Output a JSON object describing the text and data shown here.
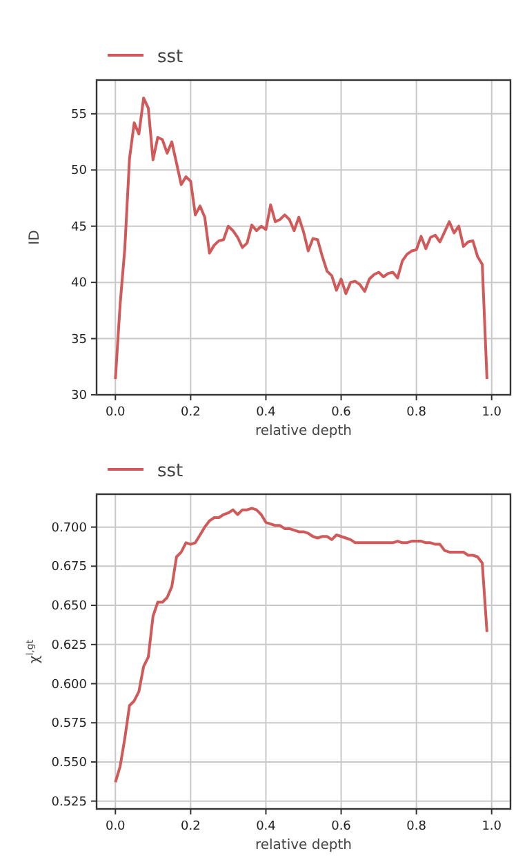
{
  "chart_data": [
    {
      "type": "line",
      "xlabel": "relative depth",
      "ylabel": "ID",
      "legend": "top left",
      "grid": true,
      "marker": "none",
      "line_style": "solid",
      "xlim": [
        -0.05,
        1.05
      ],
      "xticks": [
        {
          "value": 0,
          "label": "0.0"
        },
        {
          "value": 0.2,
          "label": "0.2"
        },
        {
          "value": 0.4,
          "label": "0.4"
        },
        {
          "value": 0.6,
          "label": "0.6"
        },
        {
          "value": 0.8,
          "label": "0.8"
        },
        {
          "value": 1,
          "label": "1.0"
        }
      ],
      "ylim": [
        30,
        58
      ],
      "yticks": [
        30,
        35,
        40,
        45,
        50,
        55
      ],
      "x": [
        0,
        0.0125,
        0.025,
        0.0375,
        0.05,
        0.0625,
        0.075,
        0.0875,
        0.1,
        0.1125,
        0.125,
        0.1375,
        0.15,
        0.1625,
        0.175,
        0.1875,
        0.2,
        0.2125,
        0.225,
        0.2375,
        0.25,
        0.2625,
        0.275,
        0.2875,
        0.3,
        0.3125,
        0.325,
        0.3375,
        0.35,
        0.3625,
        0.375,
        0.3875,
        0.4,
        0.4125,
        0.425,
        0.4375,
        0.45,
        0.4625,
        0.475,
        0.4875,
        0.5,
        0.5125,
        0.525,
        0.5375,
        0.55,
        0.5625,
        0.575,
        0.5875,
        0.6,
        0.6125,
        0.625,
        0.6375,
        0.65,
        0.6625,
        0.675,
        0.6875,
        0.7,
        0.7125,
        0.725,
        0.7375,
        0.75,
        0.7625,
        0.775,
        0.7875,
        0.8,
        0.8125,
        0.825,
        0.8375,
        0.85,
        0.8625,
        0.875,
        0.8875,
        0.9,
        0.9125,
        0.925,
        0.9375,
        0.95,
        0.9625,
        0.975,
        0.9875
      ],
      "series": [
        {
          "name": "sst",
          "color": "#d0595a",
          "values": [
            31.4,
            38,
            43,
            51,
            54.2,
            53.2,
            56.4,
            55.5,
            50.9,
            52.9,
            52.7,
            51.5,
            52.5,
            50.6,
            48.7,
            49.4,
            49,
            46,
            46.8,
            45.8,
            42.6,
            43.3,
            43.7,
            43.8,
            45,
            44.6,
            44,
            43.1,
            43.5,
            45.1,
            44.6,
            45,
            44.7,
            46.9,
            45.4,
            45.6,
            46,
            45.6,
            44.6,
            45.8,
            44.5,
            42.8,
            43.9,
            43.8,
            42.3,
            41,
            40.6,
            39.3,
            40.3,
            39,
            40,
            40.1,
            39.8,
            39.2,
            40.3,
            40.7,
            40.9,
            40.5,
            40.8,
            40.9,
            40.4,
            41.9,
            42.5,
            42.8,
            42.9,
            44.1,
            43,
            44,
            44.2,
            43.6,
            44.5,
            45.4,
            44.4,
            45,
            43.2,
            43.6,
            43.7,
            42.3,
            41.6,
            31.4
          ]
        }
      ]
    },
    {
      "type": "line",
      "xlabel": "relative depth",
      "ylabel": "χ$^{l,gt}$",
      "legend": "top left",
      "grid": true,
      "marker": "none",
      "line_style": "solid",
      "xlim": [
        -0.05,
        1.05
      ],
      "xticks": [
        {
          "value": 0,
          "label": "0.0"
        },
        {
          "value": 0.2,
          "label": "0.2"
        },
        {
          "value": 0.4,
          "label": "0.4"
        },
        {
          "value": 0.6,
          "label": "0.6"
        },
        {
          "value": 0.8,
          "label": "0.8"
        },
        {
          "value": 1,
          "label": "1.0"
        }
      ],
      "ylim": [
        0.52,
        0.721
      ],
      "yticks": [
        {
          "value": 0.525,
          "label": "0.525"
        },
        {
          "value": 0.55,
          "label": "0.550"
        },
        {
          "value": 0.575,
          "label": "0.575"
        },
        {
          "value": 0.6,
          "label": "0.600"
        },
        {
          "value": 0.625,
          "label": "0.625"
        },
        {
          "value": 0.65,
          "label": "0.650"
        },
        {
          "value": 0.675,
          "label": "0.675"
        },
        {
          "value": 0.7,
          "label": "0.700"
        }
      ],
      "x": [
        0,
        0.0125,
        0.025,
        0.0375,
        0.05,
        0.0625,
        0.075,
        0.0875,
        0.1,
        0.1125,
        0.125,
        0.1375,
        0.15,
        0.1625,
        0.175,
        0.1875,
        0.2,
        0.2125,
        0.225,
        0.2375,
        0.25,
        0.2625,
        0.275,
        0.2875,
        0.3,
        0.3125,
        0.325,
        0.3375,
        0.35,
        0.3625,
        0.375,
        0.3875,
        0.4,
        0.4125,
        0.425,
        0.4375,
        0.45,
        0.4625,
        0.475,
        0.4875,
        0.5,
        0.5125,
        0.525,
        0.5375,
        0.55,
        0.5625,
        0.575,
        0.5875,
        0.6,
        0.6125,
        0.625,
        0.6375,
        0.65,
        0.6625,
        0.675,
        0.6875,
        0.7,
        0.7125,
        0.725,
        0.7375,
        0.75,
        0.7625,
        0.775,
        0.7875,
        0.8,
        0.8125,
        0.825,
        0.8375,
        0.85,
        0.8625,
        0.875,
        0.8875,
        0.9,
        0.9125,
        0.925,
        0.9375,
        0.95,
        0.9625,
        0.975,
        0.9875
      ],
      "series": [
        {
          "name": "sst",
          "color": "#d0595a",
          "values": [
            0.537,
            0.547,
            0.565,
            0.586,
            0.589,
            0.595,
            0.611,
            0.617,
            0.643,
            0.652,
            0.652,
            0.655,
            0.662,
            0.681,
            0.684,
            0.69,
            0.689,
            0.69,
            0.695,
            0.7,
            0.704,
            0.706,
            0.706,
            0.708,
            0.709,
            0.711,
            0.708,
            0.711,
            0.711,
            0.712,
            0.711,
            0.708,
            0.703,
            0.702,
            0.701,
            0.701,
            0.699,
            0.699,
            0.698,
            0.697,
            0.697,
            0.696,
            0.694,
            0.693,
            0.694,
            0.694,
            0.692,
            0.695,
            0.694,
            0.693,
            0.692,
            0.69,
            0.69,
            0.69,
            0.69,
            0.69,
            0.69,
            0.69,
            0.69,
            0.69,
            0.691,
            0.69,
            0.69,
            0.691,
            0.691,
            0.691,
            0.69,
            0.69,
            0.689,
            0.689,
            0.685,
            0.684,
            0.684,
            0.684,
            0.684,
            0.682,
            0.682,
            0.681,
            0.677,
            0.633
          ]
        }
      ]
    }
  ]
}
